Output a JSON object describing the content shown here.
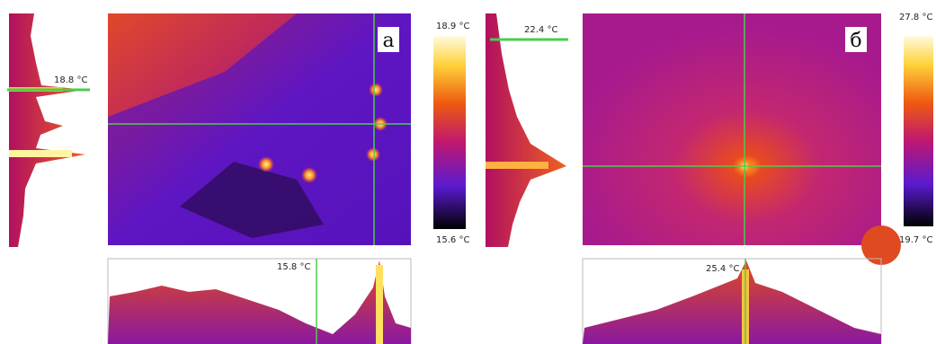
{
  "panels": [
    {
      "label": "а",
      "left_profile_label": "18.8 °C",
      "bottom_profile_label": "15.8 °C",
      "scale_max": "18.9 °C",
      "scale_min": "15.6 °C"
    },
    {
      "label": "б",
      "left_profile_label": "22.4 °C",
      "bottom_profile_label": "25.4 °C",
      "scale_max": "27.8 °C",
      "scale_min": "19.7 °C"
    }
  ]
}
